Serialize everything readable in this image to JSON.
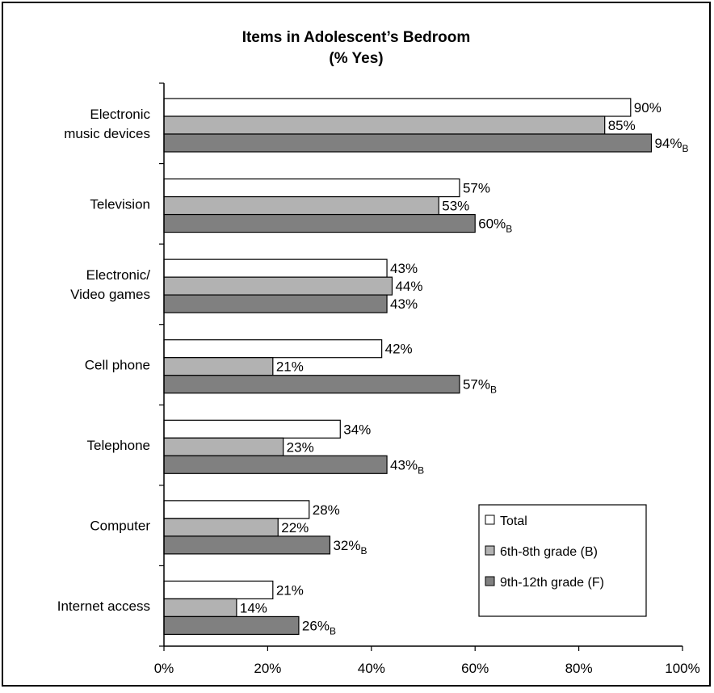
{
  "chart_data": {
    "type": "bar",
    "orientation": "horizontal",
    "title": "Items in Adolescent’s Bedroom",
    "subtitle": "(% Yes)",
    "categories": [
      [
        "Electronic",
        "music devices"
      ],
      [
        "Television"
      ],
      [
        "Electronic/",
        "Video games"
      ],
      [
        "Cell phone"
      ],
      [
        "Telephone"
      ],
      [
        "Computer"
      ],
      [
        "Internet access"
      ]
    ],
    "series": [
      {
        "name": "Total",
        "color": "#ffffff",
        "values": [
          90,
          57,
          43,
          42,
          34,
          28,
          21
        ],
        "labels": [
          "90%",
          "57%",
          "43%",
          "42%",
          "34%",
          "28%",
          "21%"
        ],
        "suffix": [
          "",
          "",
          "",
          "",
          "",
          "",
          ""
        ]
      },
      {
        "name": "6th-8th grade (B)",
        "color": "#b2b2b2",
        "values": [
          85,
          53,
          44,
          21,
          23,
          22,
          14
        ],
        "labels": [
          "85%",
          "53%",
          "44%",
          "21%",
          "23%",
          "22%",
          "14%"
        ],
        "suffix": [
          "",
          "",
          "",
          "",
          "",
          "",
          ""
        ]
      },
      {
        "name": "9th-12th grade (F)",
        "color": "#808080",
        "values": [
          94,
          60,
          43,
          57,
          43,
          32,
          26
        ],
        "labels": [
          "94%",
          "60%",
          "43%",
          "57%",
          "43%",
          "32%",
          "26%"
        ],
        "suffix": [
          "B",
          "B",
          "",
          "B",
          "B",
          "B",
          "B"
        ]
      }
    ],
    "xlim": [
      0,
      100
    ],
    "xticks": [
      "0%",
      "20%",
      "40%",
      "60%",
      "80%",
      "100%"
    ],
    "grid": false,
    "legend_position": "bottom-right"
  }
}
